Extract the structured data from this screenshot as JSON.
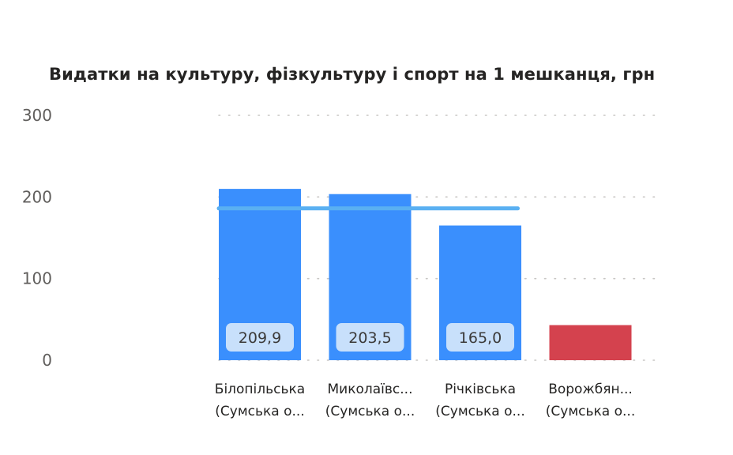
{
  "chart_data": {
    "type": "bar",
    "title": "Видатки на культуру, фізкультуру і спорт на 1 мешканця, грн",
    "xlabel": "",
    "ylabel": "",
    "ylim": [
      0,
      300
    ],
    "yticks": [
      "0",
      "100",
      "200",
      "300"
    ],
    "grid": true,
    "categories": [
      [
        "Білопільська",
        "(Сумська о..."
      ],
      [
        "Миколаївс...",
        "(Сумська о..."
      ],
      [
        "Річківська",
        "(Сумська о..."
      ],
      [
        "Ворожбян...",
        "(Сумська о..."
      ]
    ],
    "values": [
      209.9,
      203.5,
      165.0,
      43
    ],
    "data_labels": [
      "209,9",
      "203,5",
      "165,0",
      ""
    ],
    "bar_colors": [
      "#3a8ffd",
      "#3a8ffd",
      "#3a8ffd",
      "#d4424e"
    ],
    "average_line": {
      "value": 186,
      "color": "#5ab0f2"
    }
  },
  "colors": {
    "bar": "#3a8ffd",
    "bar_highlight": "#d4424e",
    "average_line": "#5ab0f2",
    "label_bg": "#c8e0fb"
  }
}
